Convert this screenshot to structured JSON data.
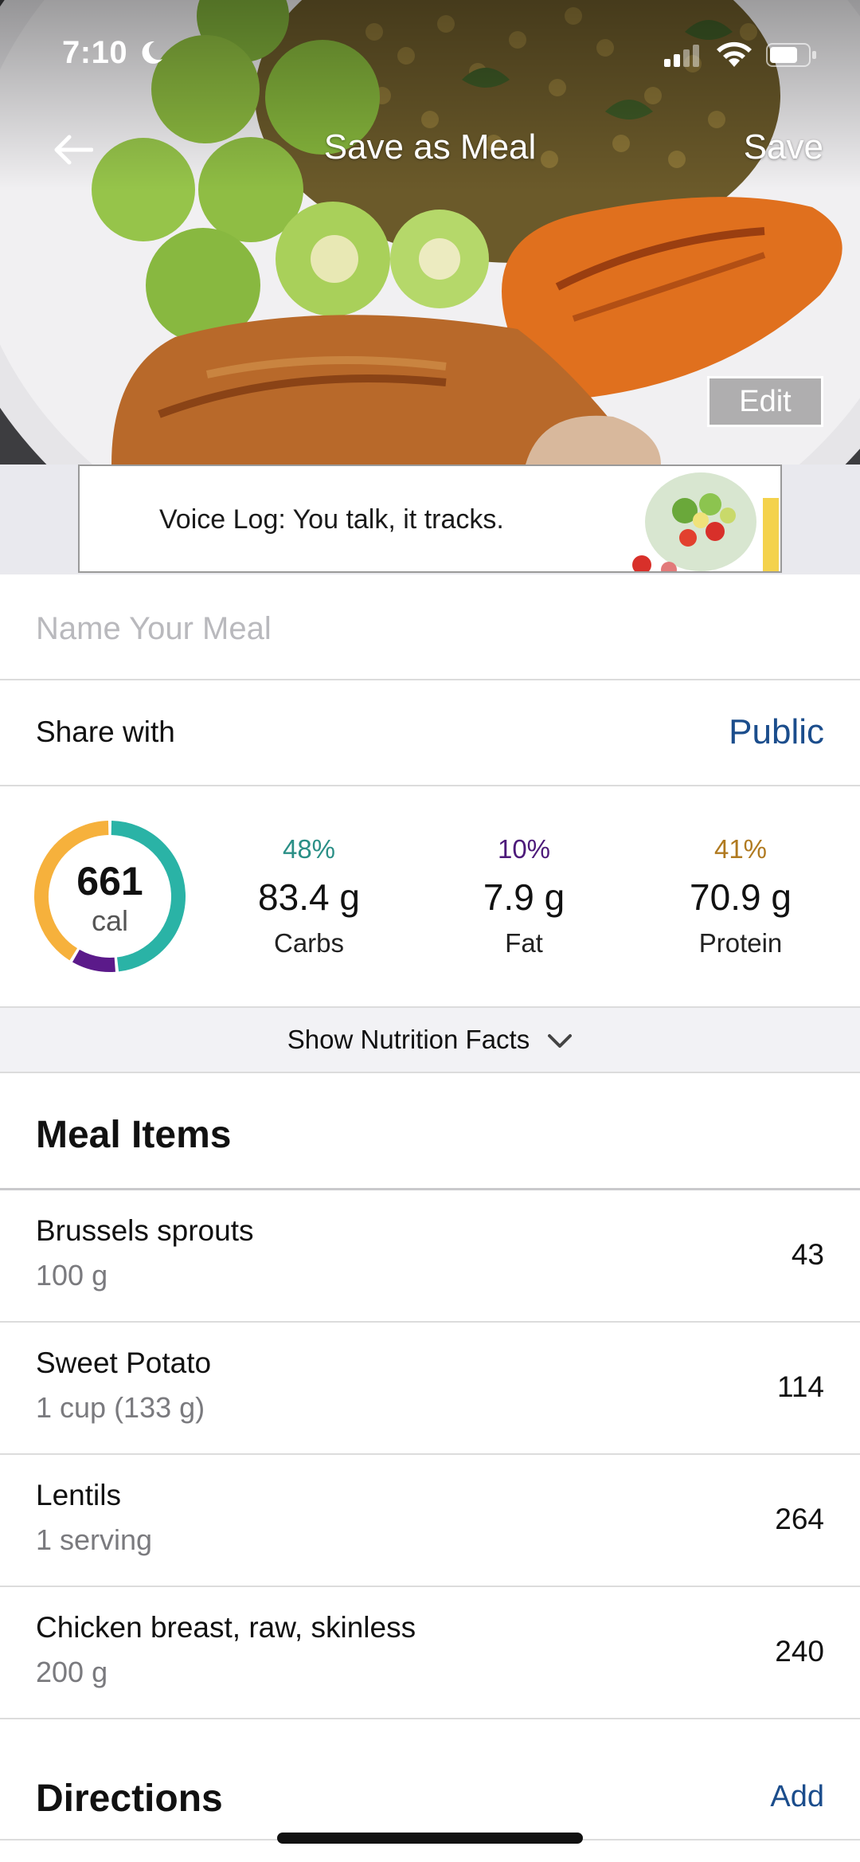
{
  "status_bar": {
    "time": "7:10"
  },
  "nav": {
    "title": "Save as Meal",
    "save_label": "Save",
    "back_icon": "arrow-left-icon"
  },
  "hero": {
    "edit_label": "Edit"
  },
  "ad": {
    "text": "Voice Log: You talk, it tracks."
  },
  "meal_name": {
    "placeholder": "Name Your Meal",
    "value": ""
  },
  "share": {
    "label": "Share with",
    "value": "Public"
  },
  "nutrition": {
    "calories": "661",
    "calories_unit": "cal",
    "macros": [
      {
        "percent": "48%",
        "grams": "83.4 g",
        "label": "Carbs",
        "fraction": 0.48,
        "color": "#2ab3a6"
      },
      {
        "percent": "10%",
        "grams": "7.9 g",
        "label": "Fat",
        "fraction": 0.1,
        "color": "#5b1a8a"
      },
      {
        "percent": "41%",
        "grams": "70.9 g",
        "label": "Protein",
        "fraction": 0.41,
        "color": "#f6b13c"
      }
    ],
    "show_facts_label": "Show Nutrition Facts"
  },
  "meal_items": {
    "title": "Meal Items",
    "items": [
      {
        "name": "Brussels sprouts",
        "serving": "100 g",
        "calories": "43"
      },
      {
        "name": "Sweet Potato",
        "serving": "1 cup (133 g)",
        "calories": "114"
      },
      {
        "name": "Lentils",
        "serving": "1 serving",
        "calories": "264"
      },
      {
        "name": "Chicken breast, raw, skinless",
        "serving": "200 g",
        "calories": "240"
      }
    ]
  },
  "directions": {
    "title": "Directions",
    "add_label": "Add"
  },
  "colors": {
    "link_blue": "#1b4d8c",
    "carbs_teal": "#2ab3a6",
    "fat_purple": "#5b1a8a",
    "protein_orange": "#f6b13c"
  }
}
